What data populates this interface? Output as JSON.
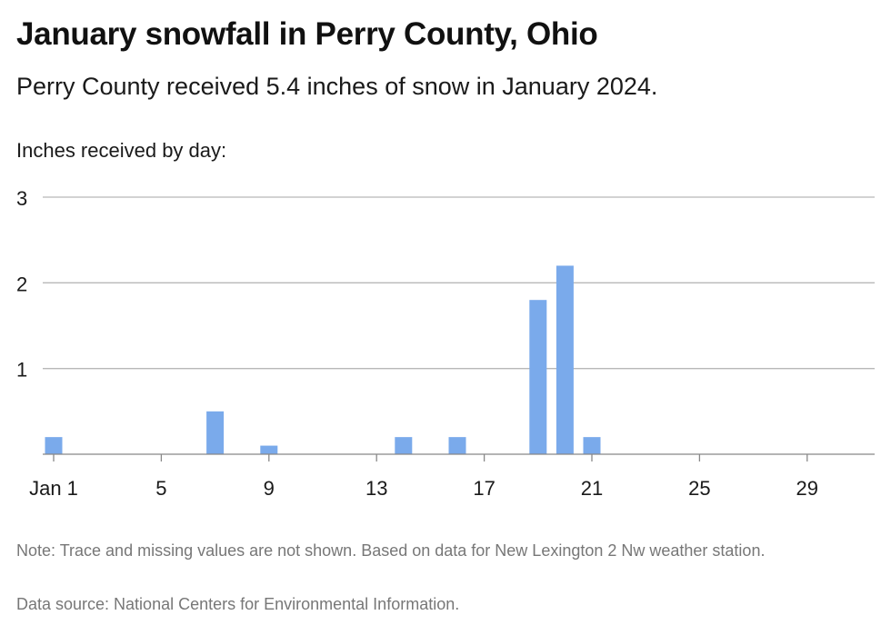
{
  "chart_data": {
    "type": "bar",
    "title": "January snowfall in Perry County, Ohio",
    "subtitle": "Perry County received 5.4 inches of snow in January 2024.",
    "ylabel": "Inches received by day:",
    "xlabel": "",
    "x_range": [
      1,
      31
    ],
    "ylim": [
      0,
      3
    ],
    "y_ticks": [
      1,
      2,
      3
    ],
    "x_ticks": [
      {
        "day": 1,
        "label": "Jan 1"
      },
      {
        "day": 5,
        "label": "5"
      },
      {
        "day": 9,
        "label": "9"
      },
      {
        "day": 13,
        "label": "13"
      },
      {
        "day": 17,
        "label": "17"
      },
      {
        "day": 21,
        "label": "21"
      },
      {
        "day": 25,
        "label": "25"
      },
      {
        "day": 29,
        "label": "29"
      }
    ],
    "x": [
      1,
      7,
      9,
      14,
      16,
      19,
      20,
      21
    ],
    "values": [
      0.2,
      0.5,
      0.1,
      0.2,
      0.2,
      1.8,
      2.2,
      0.2
    ],
    "grid": true,
    "bar_color": "#7aaaeb",
    "note": "Note: Trace and missing values are not shown. Based on data for New Lexington 2 Nw weather station.",
    "source": "Data source: National Centers for Environmental Information."
  }
}
